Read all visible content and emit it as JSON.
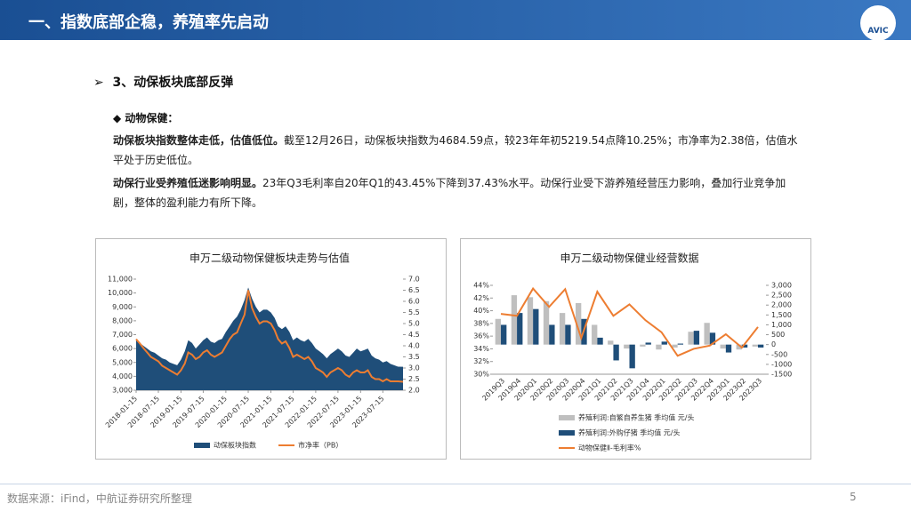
{
  "header": {
    "title": "一、指数底部企稳，养殖率先启动",
    "logo": "AVIC"
  },
  "section": {
    "heading": "3、动保板块底部反弹",
    "bullet": "动物保健：",
    "paragraphs": [
      {
        "bold": "动保板块指数整体走低，估值低位。",
        "text": "截至12月26日，动保板块指数为4684.59点，较23年年初5219.54点降10.25%；市净率为2.38倍，估值水平处于历史低位。"
      },
      {
        "bold": "动保行业受养殖低迷影响明显。",
        "text": "23年Q3毛利率自20年Q1的43.45%下降到37.43%水平。动保行业受下游养殖经营压力影响，叠加行业竞争加剧，整体的盈利能力有所下降。"
      }
    ]
  },
  "chart_data": [
    {
      "type": "combo",
      "title": "申万二级动物保健板块走势与估值",
      "legend_layout": "row",
      "x": [
        "2018-01-15",
        "2018-02-15",
        "2018-03-15",
        "2018-04-15",
        "2018-05-15",
        "2018-06-15",
        "2018-07-15",
        "2018-08-15",
        "2018-09-15",
        "2018-10-15",
        "2018-11-15",
        "2018-12-15",
        "2019-01-15",
        "2019-02-15",
        "2019-03-15",
        "2019-04-15",
        "2019-05-15",
        "2019-06-15",
        "2019-07-15",
        "2019-08-15",
        "2019-09-15",
        "2019-10-15",
        "2019-11-15",
        "2019-12-15",
        "2020-01-15",
        "2020-02-15",
        "2020-03-15",
        "2020-04-15",
        "2020-05-15",
        "2020-06-15",
        "2020-07-15",
        "2020-08-15",
        "2020-09-15",
        "2020-10-15",
        "2020-11-15",
        "2020-12-15",
        "2021-01-15",
        "2021-02-15",
        "2021-03-15",
        "2021-04-15",
        "2021-05-15",
        "2021-06-15",
        "2021-07-15",
        "2021-08-15",
        "2021-09-15",
        "2021-10-15",
        "2021-11-15",
        "2021-12-15",
        "2022-01-15",
        "2022-02-15",
        "2022-03-15",
        "2022-04-15",
        "2022-05-15",
        "2022-06-15",
        "2022-07-15",
        "2022-08-15",
        "2022-09-15",
        "2022-10-15",
        "2022-11-15",
        "2022-12-15",
        "2023-01-15",
        "2023-02-15",
        "2023-03-15",
        "2023-04-15",
        "2023-05-15",
        "2023-06-15",
        "2023-07-15",
        "2023-08-15",
        "2023-09-15",
        "2023-10-15",
        "2023-11-15",
        "2023-12-26"
      ],
      "series": [
        {
          "name": "动保板块指数",
          "kind": "area",
          "color": "#1f4e79",
          "values": [
            6600,
            6400,
            6200,
            6000,
            5800,
            5700,
            5500,
            5300,
            5200,
            5000,
            4900,
            4800,
            5200,
            5800,
            6600,
            6400,
            6000,
            6300,
            6600,
            6800,
            6500,
            6400,
            6600,
            6700,
            7200,
            7600,
            8000,
            8300,
            8800,
            9500,
            10400,
            9600,
            9000,
            8600,
            8800,
            8800,
            8600,
            8200,
            7600,
            7400,
            7600,
            7200,
            6600,
            6800,
            6600,
            6500,
            6700,
            6400,
            6000,
            5800,
            5600,
            5300,
            5600,
            5800,
            6000,
            5800,
            5500,
            5400,
            5700,
            6000,
            5800,
            5900,
            6000,
            5500,
            5300,
            5200,
            5000,
            5100,
            4900,
            4800,
            4700,
            4684.59
          ]
        },
        {
          "name": "市净率（PB）",
          "kind": "line",
          "axis": "y2",
          "color": "#ed7d31",
          "values": [
            4.3,
            4.1,
            3.9,
            3.7,
            3.5,
            3.4,
            3.3,
            3.1,
            3.0,
            2.9,
            2.8,
            2.7,
            2.9,
            3.2,
            3.7,
            3.6,
            3.4,
            3.5,
            3.7,
            3.8,
            3.6,
            3.5,
            3.6,
            3.7,
            4.0,
            4.3,
            4.5,
            4.6,
            5.0,
            5.4,
            6.5,
            5.7,
            5.3,
            5.0,
            5.1,
            5.1,
            5.0,
            4.7,
            4.3,
            4.1,
            4.2,
            3.9,
            3.5,
            3.6,
            3.5,
            3.4,
            3.5,
            3.3,
            3.0,
            2.9,
            2.8,
            2.6,
            2.8,
            2.9,
            3.0,
            2.9,
            2.7,
            2.6,
            2.8,
            2.9,
            2.8,
            2.8,
            2.9,
            2.6,
            2.5,
            2.5,
            2.4,
            2.5,
            2.4,
            2.4,
            2.4,
            2.38
          ]
        }
      ],
      "xticks": [
        "2018-01-15",
        "2018-07-15",
        "2019-01-15",
        "2019-07-15",
        "2020-01-15",
        "2020-07-15",
        "2021-01-15",
        "2021-07-15",
        "2022-01-15",
        "2022-07-15",
        "2023-01-15",
        "2023-07-15"
      ],
      "ylim": [
        3000,
        11000
      ],
      "yticks": [
        {
          "value": 3000,
          "label": "3,000"
        },
        {
          "value": 4000,
          "label": "4,000"
        },
        {
          "value": 5000,
          "label": "5,000"
        },
        {
          "value": 6000,
          "label": "6,000"
        },
        {
          "value": 7000,
          "label": "7,000"
        },
        {
          "value": 8000,
          "label": "8,000"
        },
        {
          "value": 9000,
          "label": "9,000"
        },
        {
          "value": 10000,
          "label": "10,000"
        },
        {
          "value": 11000,
          "label": "11,000"
        }
      ],
      "y2lim": [
        2,
        7
      ],
      "y2ticks": [
        {
          "value": 2,
          "label": "2.0"
        },
        2.5,
        {
          "value": 3,
          "label": "3.0"
        },
        3.5,
        {
          "value": 4,
          "label": "4.0"
        },
        4.5,
        {
          "value": 5,
          "label": "5.0"
        },
        5.5,
        {
          "value": 6,
          "label": "6.0"
        },
        6.5,
        {
          "value": 7,
          "label": "7.0"
        }
      ]
    },
    {
      "type": "combo",
      "title": "申万二级动物保健业经营数据",
      "legend_layout": "column",
      "categories": [
        "2019Q3",
        "2019Q4",
        "2020Q1",
        "2020Q2",
        "2020Q3",
        "2020Q4",
        "2021Q1",
        "2021Q2",
        "2021Q3",
        "2021Q4",
        "2022Q1",
        "2022Q2",
        "2022Q3",
        "2022Q4",
        "2023Q1",
        "2023Q2",
        "2023Q3"
      ],
      "series": [
        {
          "name": "养殖利润:自繁自养生猪 季均值 元/头",
          "kind": "bar",
          "axis": "y2",
          "color": "#bfbfbf",
          "values": [
            1300,
            2500,
            2400,
            2200,
            1600,
            2100,
            1000,
            200,
            -200,
            -100,
            -250,
            -150,
            650,
            1100,
            -200,
            -250,
            -100
          ]
        },
        {
          "name": "养殖利润:外购仔猪 季均值 元/头",
          "kind": "bar",
          "axis": "y2",
          "color": "#1f4e79",
          "values": [
            1000,
            1600,
            1800,
            1000,
            1000,
            1300,
            350,
            -800,
            -1200,
            100,
            150,
            50,
            700,
            600,
            -400,
            -150,
            -150
          ]
        },
        {
          "name": "动物保健Ⅱ-毛利率%",
          "kind": "line",
          "color": "#ed7d31",
          "values": [
            39.5,
            39.2,
            43.5,
            40.6,
            43.4,
            35.7,
            43.0,
            39.2,
            41.0,
            38.5,
            36.6,
            32.9,
            34.0,
            34.5,
            36.3,
            34.2,
            37.43
          ]
        }
      ],
      "ylim": [
        30,
        44
      ],
      "yticks": [
        {
          "value": 30,
          "label": "30%"
        },
        {
          "value": 32,
          "label": "32%"
        },
        {
          "value": 34,
          "label": "34%"
        },
        {
          "value": 36,
          "label": "36%"
        },
        {
          "value": 38,
          "label": "38%"
        },
        {
          "value": 40,
          "label": "40%"
        },
        {
          "value": 42,
          "label": "42%"
        },
        {
          "value": 44,
          "label": "44%"
        }
      ],
      "y2lim": [
        -1500,
        3000
      ],
      "y2ticks": [
        -1500,
        -1000,
        -500,
        0,
        500,
        {
          "value": 1000,
          "label": "1,000"
        },
        {
          "value": 1500,
          "label": "1,500"
        },
        {
          "value": 2000,
          "label": "2,000"
        },
        {
          "value": 2500,
          "label": "2,500"
        },
        {
          "value": 3000,
          "label": "3,000"
        }
      ]
    }
  ],
  "footer": {
    "source": "数据来源：iFind，中航证券研究所整理",
    "page": "5"
  }
}
